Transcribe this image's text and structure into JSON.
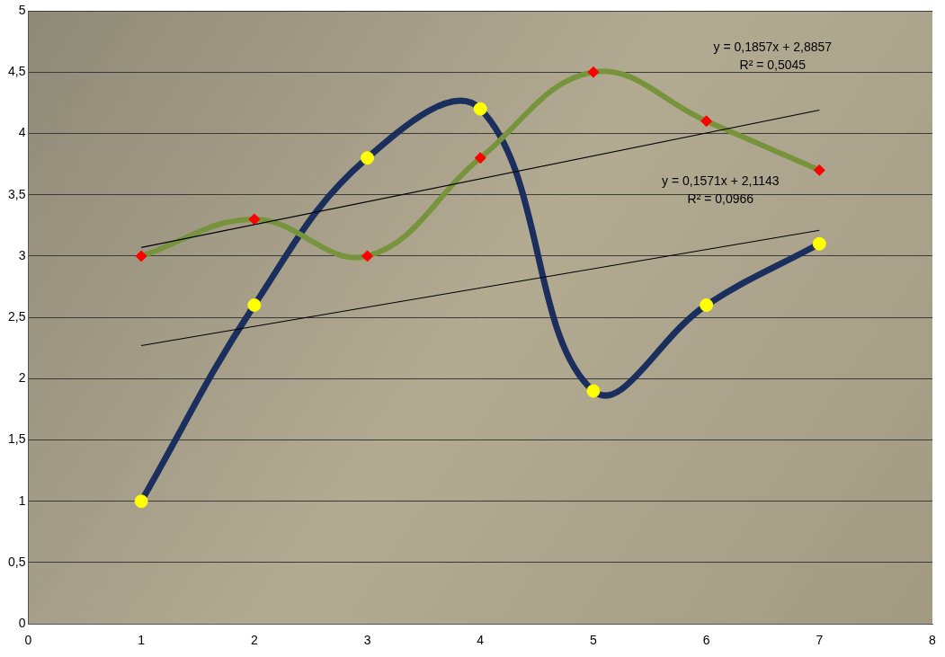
{
  "chart_data": {
    "type": "line",
    "x": [
      1,
      2,
      3,
      4,
      5,
      6,
      7
    ],
    "xlim": [
      0,
      8
    ],
    "xticks": [
      0,
      1,
      2,
      3,
      4,
      5,
      6,
      7,
      8
    ],
    "ylim": [
      0,
      5
    ],
    "yticks": [
      0,
      {
        "value": 0.5,
        "label": "0,5"
      },
      1,
      {
        "value": 1.5,
        "label": "1,5"
      },
      2,
      {
        "value": 2.5,
        "label": "2,5"
      },
      3,
      {
        "value": 3.5,
        "label": "3,5"
      },
      4,
      {
        "value": 4.5,
        "label": "4,5"
      },
      5
    ],
    "grid": true,
    "series": [
      {
        "color": "#77933c",
        "line_style": "smooth",
        "marker": "diamond",
        "colors": [
          "#ff0000",
          "#ff0000",
          "#ff0000",
          "#ff0000",
          "#ff0000",
          "#ff0000",
          "#ff0000"
        ],
        "values": [
          3,
          3.3,
          3,
          3.8,
          4.5,
          4.1,
          3.7
        ]
      },
      {
        "color": "#1b2f5e",
        "line_style": "smooth",
        "marker": "circle",
        "colors": [
          "#ffff00",
          "#ffff00",
          "#ffff00",
          "#ffff00",
          "#ffff00",
          "#ffff00",
          "#ffff00"
        ],
        "values": [
          1,
          2.6,
          3.8,
          4.2,
          1.9,
          2.6,
          3.1
        ]
      },
      {
        "type": "line",
        "color": "#000000",
        "line_style": "solid",
        "marker": "none",
        "x": [
          1,
          7
        ],
        "values": [
          3.07,
          4.19
        ],
        "annotations": [
          "y = 0,1857x + 2,8857",
          "R² = 0,5045"
        ]
      },
      {
        "type": "line",
        "color": "#000000",
        "line_style": "solid",
        "marker": "none",
        "x": [
          1,
          7
        ],
        "values": [
          2.27,
          3.21
        ],
        "annotations": [
          "y = 0,1571x + 2,1143",
          "R² = 0,0966"
        ]
      }
    ]
  }
}
